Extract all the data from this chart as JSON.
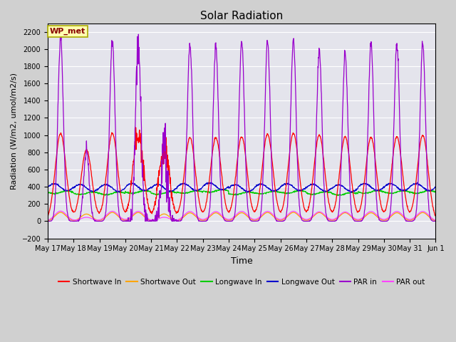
{
  "title": "Solar Radiation",
  "xlabel": "Time",
  "ylabel": "Radiation (W/m2, umol/m2/s)",
  "ylim": [
    -200,
    2300
  ],
  "yticks": [
    -200,
    0,
    200,
    400,
    600,
    800,
    1000,
    1200,
    1400,
    1600,
    1800,
    2000,
    2200
  ],
  "fig_bg_color": "#d8d8d8",
  "plot_bg_color": "#e0e0e8",
  "legend_labels": [
    "Shortwave In",
    "Shortwave Out",
    "Longwave In",
    "Longwave Out",
    "PAR in",
    "PAR out"
  ],
  "legend_colors": [
    "#ff0000",
    "#ffa500",
    "#00cc00",
    "#0000cc",
    "#9900cc",
    "#ff44ff"
  ],
  "station_label": "WP_met",
  "tick_dates": [
    "May 17",
    "May 18",
    "May 19",
    "May 20",
    "May 21",
    "May 22",
    "May 23",
    "May 24",
    "May 25",
    "May 26",
    "May 27",
    "May 28",
    "May 29",
    "May 30",
    "May 31",
    "Jun 1"
  ],
  "shortwave_in_peak": 1000,
  "par_in_peak": 2150,
  "par_out_peak": 110,
  "shortwave_out_peak": 100,
  "longwave_in_base": 330,
  "longwave_out_base": 390
}
